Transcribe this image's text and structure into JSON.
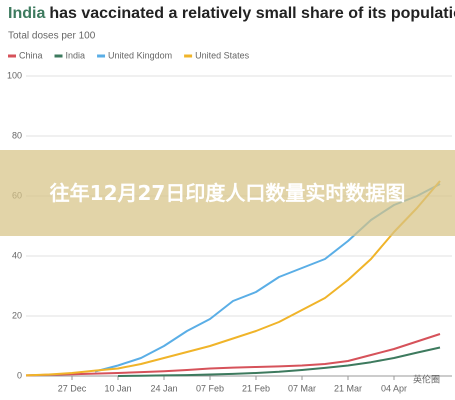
{
  "chart_data": {
    "type": "line",
    "title_highlight": "India",
    "title": "has vaccinated a relatively small share of its population",
    "subtitle": "Total doses per 100",
    "categories": [
      null,
      null,
      "27 Dec",
      null,
      "10 Jan",
      null,
      "24 Jan",
      null,
      "07 Feb",
      null,
      "21 Feb",
      null,
      "07 Mar",
      null,
      "21 Mar",
      null,
      "04 Apr",
      null,
      null
    ],
    "series": [
      {
        "name": "China",
        "color": "#d6525a",
        "values": [
          0.2,
          0.4,
          0.6,
          0.8,
          1,
          1.3,
          1.6,
          2,
          2.5,
          2.8,
          3,
          3.2,
          3.5,
          4,
          5,
          7,
          9,
          11.5,
          14
        ]
      },
      {
        "name": "India",
        "color": "#3d7a5e",
        "values": [
          null,
          null,
          null,
          null,
          0,
          0.1,
          0.2,
          0.3,
          0.5,
          0.7,
          1,
          1.4,
          2,
          2.7,
          3.5,
          4.6,
          6,
          7.8,
          9.5
        ]
      },
      {
        "name": "United Kingdom",
        "color": "#5aaee6",
        "values": [
          null,
          null,
          null,
          1.5,
          3.5,
          6,
          10,
          15,
          19,
          25,
          28,
          33,
          36,
          39,
          45,
          52,
          57,
          60,
          64
        ]
      },
      {
        "name": "United States",
        "color": "#f0b429",
        "values": [
          0.2,
          0.5,
          1,
          1.8,
          2.5,
          4,
          6,
          8,
          10,
          12.5,
          15,
          18,
          22,
          26,
          32,
          39,
          48,
          56,
          65
        ]
      }
    ],
    "ylim": [
      0,
      100
    ],
    "yticks": [
      0,
      20,
      40,
      60,
      80,
      100
    ],
    "grid": true,
    "annotation": "往年12月27日印度人口数量实时数据图",
    "watermark": "英伦圈"
  }
}
